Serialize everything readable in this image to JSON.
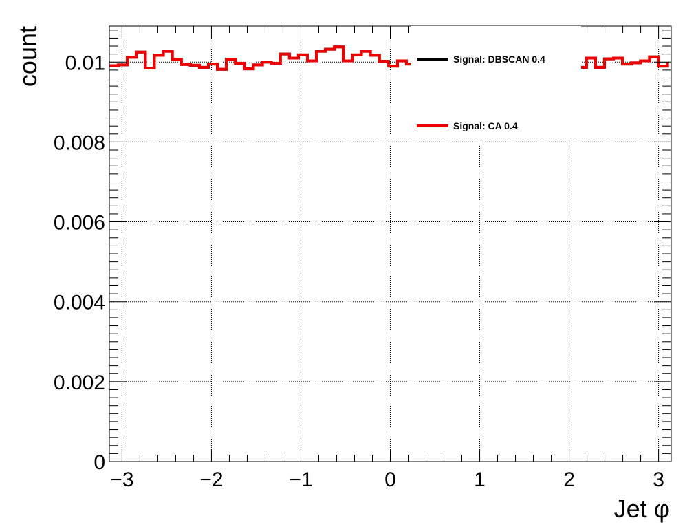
{
  "chart_data": {
    "type": "line",
    "xlabel": "Jet φ",
    "ylabel": "count",
    "xlim": [
      -3.1416,
      3.1416
    ],
    "ylim": [
      0,
      0.0109
    ],
    "grid": true,
    "legend_position": "top-right",
    "x_ticks": [
      {
        "value": -3,
        "label": "−3"
      },
      {
        "value": -2,
        "label": "−2"
      },
      {
        "value": -1,
        "label": "−1"
      },
      {
        "value": 0,
        "label": "0"
      },
      {
        "value": 1,
        "label": "1"
      },
      {
        "value": 2,
        "label": "2"
      },
      {
        "value": 3,
        "label": "3"
      }
    ],
    "y_ticks": [
      {
        "value": 0,
        "label": "0"
      },
      {
        "value": 0.002,
        "label": "0.002"
      },
      {
        "value": 0.004,
        "label": "0.004"
      },
      {
        "value": 0.006,
        "label": "0.006"
      },
      {
        "value": 0.008,
        "label": "0.008"
      },
      {
        "value": 0.01,
        "label": "0.01"
      }
    ],
    "bin_edges": [
      -3.1416,
      -3.0409,
      -2.9403,
      -2.8396,
      -2.7389,
      -2.6382,
      -2.5376,
      -2.4369,
      -2.3362,
      -2.2356,
      -2.1349,
      -2.0342,
      -1.9336,
      -1.8329,
      -1.7322,
      -1.6315,
      -1.5309,
      -1.4302,
      -1.3295,
      -1.2289,
      -1.1282,
      -1.0275,
      -0.9268,
      -0.8262,
      -0.7255,
      -0.6248,
      -0.5242,
      -0.4235,
      -0.3228,
      -0.2222,
      -0.1215,
      -0.0208,
      0.0799,
      0.1805,
      0.2812,
      0.3819,
      0.4825,
      0.5832,
      0.6839,
      0.7846,
      0.8852,
      0.9859,
      1.0866,
      1.1872,
      1.2879,
      1.3886,
      1.4892,
      1.5899,
      1.6906,
      1.7913,
      1.8919,
      1.9926,
      2.0933,
      2.1939,
      2.2946,
      2.3953,
      2.4959,
      2.5966,
      2.6973,
      2.798,
      2.8986,
      2.9993,
      3.1
    ],
    "series": [
      {
        "name": "Signal: DBSCAN 0.4",
        "color": "#000000",
        "values": [
          0.00991,
          0.00993,
          0.01012,
          0.01025,
          0.00985,
          0.01017,
          0.01027,
          0.01007,
          0.00994,
          0.00992,
          0.00987,
          0.00995,
          0.00982,
          0.01007,
          0.00997,
          0.00983,
          0.00993,
          0.01,
          0.00997,
          0.0102,
          0.0101,
          0.01018,
          0.01003,
          0.01027,
          0.01032,
          0.01038,
          0.01003,
          0.01018,
          0.01027,
          0.01017,
          0.01002,
          0.0099,
          0.01003,
          0.00995,
          0.01,
          0.01,
          0.01,
          0.01,
          0.01,
          0.01,
          0.01,
          0.01,
          0.01,
          0.01,
          0.01,
          0.01,
          0.01,
          0.01,
          0.01,
          0.01,
          0.01,
          0.01,
          0.00987,
          0.0101,
          0.00987,
          0.01008,
          0.0101,
          0.00995,
          0.00998,
          0.01003,
          0.01013,
          0.0099,
          0.01
        ]
      },
      {
        "name": "Signal: CA 0.4",
        "color": "#ee0000",
        "values": [
          0.00991,
          0.00993,
          0.01012,
          0.01025,
          0.00985,
          0.01017,
          0.01027,
          0.01007,
          0.00994,
          0.00992,
          0.00987,
          0.00995,
          0.00982,
          0.01007,
          0.00997,
          0.00983,
          0.00993,
          0.01,
          0.00997,
          0.0102,
          0.0101,
          0.01018,
          0.01003,
          0.01027,
          0.01032,
          0.01038,
          0.01003,
          0.01018,
          0.01027,
          0.01017,
          0.01002,
          0.0099,
          0.01003,
          0.00995,
          0.01,
          0.01,
          0.01,
          0.01,
          0.01,
          0.01,
          0.01,
          0.01,
          0.01,
          0.01,
          0.01,
          0.01,
          0.01,
          0.01,
          0.01,
          0.01,
          0.01,
          0.01,
          0.00987,
          0.0101,
          0.00987,
          0.01008,
          0.0101,
          0.00995,
          0.00998,
          0.01003,
          0.01013,
          0.0099,
          0.01
        ]
      }
    ]
  }
}
